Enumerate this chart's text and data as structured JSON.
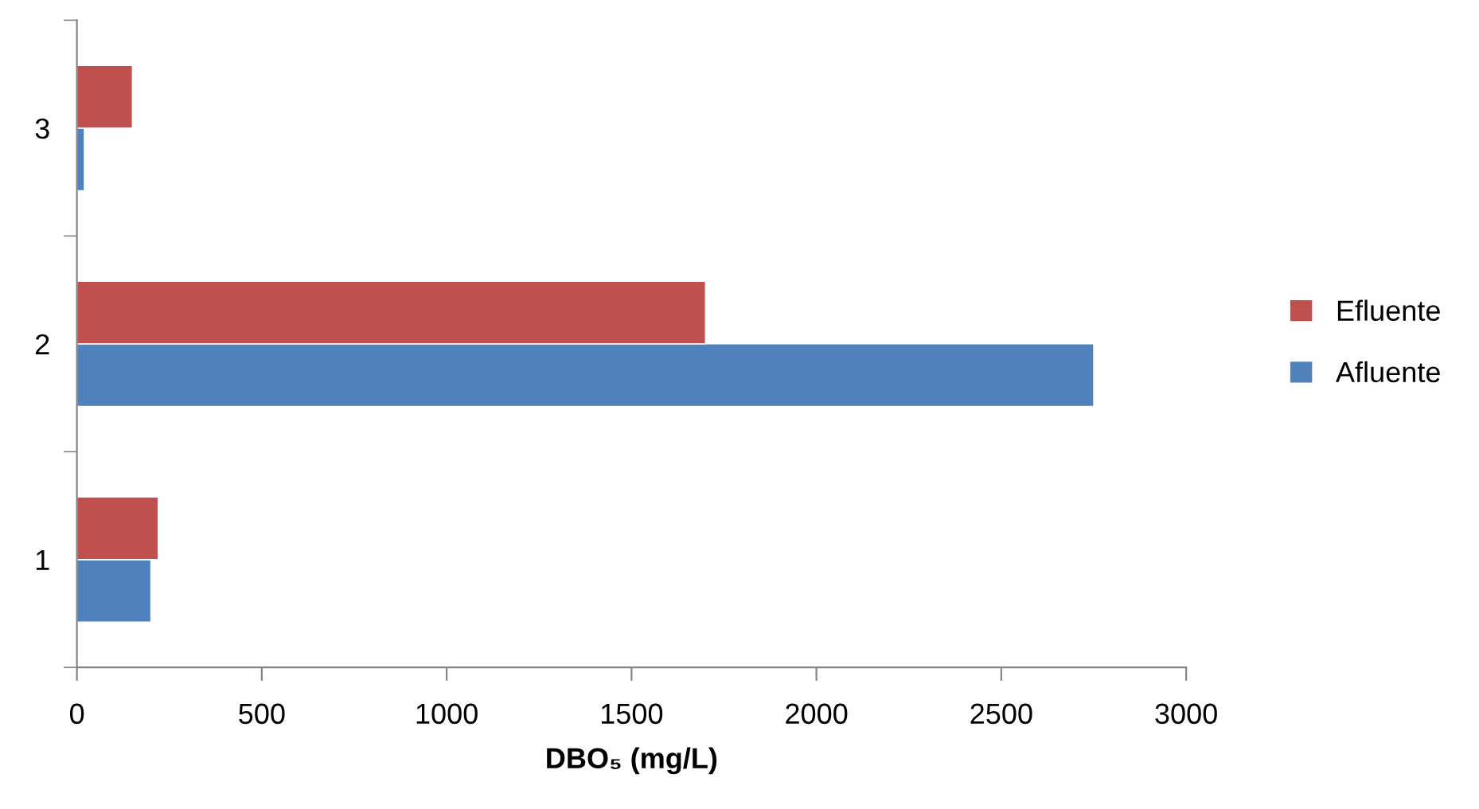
{
  "chart_data": {
    "type": "bar",
    "orientation": "horizontal",
    "xlabel": "DBO₅ (mg/L)",
    "categories": [
      "3",
      "2",
      "1"
    ],
    "series": [
      {
        "name": "Afluente",
        "color": "#4f81bd",
        "values": [
          20,
          2750,
          200
        ]
      },
      {
        "name": "Efluente",
        "color": "#c0504d",
        "values": [
          150,
          1700,
          220
        ]
      }
    ],
    "xlim": [
      0,
      3000
    ],
    "xticks": [
      0,
      500,
      1000,
      1500,
      2000,
      2500,
      3000
    ],
    "grid": false,
    "legend": "right"
  }
}
